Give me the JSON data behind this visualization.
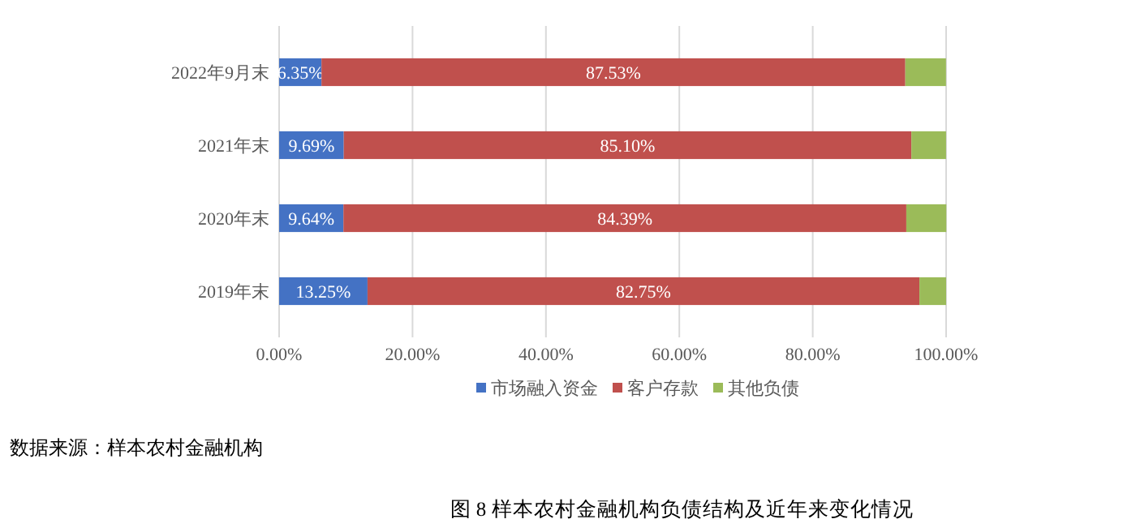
{
  "chart_data": {
    "type": "bar",
    "orientation": "horizontal",
    "stacked": true,
    "title": "图 8  样本农村金融机构负债结构及近年来变化情况",
    "annotations": [
      "数据来源：样本农村金融机构"
    ],
    "categories": [
      "2022年9月末",
      "2021年末",
      "2020年末",
      "2019年末"
    ],
    "series": [
      {
        "name": "市场融入资金",
        "color": "#4472c4",
        "values": [
          6.35,
          9.69,
          9.64,
          13.25
        ],
        "value_labels": [
          "6.35%",
          "9.69%",
          "9.64%",
          "13.25%"
        ]
      },
      {
        "name": "客户存款",
        "color": "#c0504d",
        "values": [
          87.53,
          85.1,
          84.39,
          82.75
        ],
        "value_labels": [
          "87.53%",
          "85.10%",
          "84.39%",
          "82.75%"
        ]
      },
      {
        "name": "其他负债",
        "color": "#9bbb59",
        "values": [
          6.1,
          5.2,
          6.0,
          4.0
        ]
      }
    ],
    "xlim": [
      0,
      100
    ],
    "xticks": [
      {
        "value": 0,
        "label": "0.00%"
      },
      {
        "value": 20,
        "label": "20.00%"
      },
      {
        "value": 40,
        "label": "40.00%"
      },
      {
        "value": 60,
        "label": "60.00%"
      },
      {
        "value": 80,
        "label": "80.00%"
      },
      {
        "value": 100,
        "label": "100.00%"
      }
    ],
    "grid": "x",
    "legend": "bottom"
  }
}
